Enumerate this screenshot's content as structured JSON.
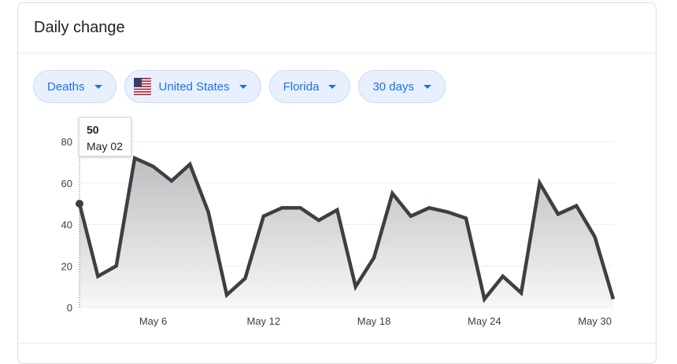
{
  "card": {
    "title": "Daily change"
  },
  "filters": [
    {
      "label": "Deaths",
      "icon": "caret-down-icon"
    },
    {
      "label": "United States",
      "icon": "us-flag-icon"
    },
    {
      "label": "Florida",
      "icon": "caret-down-icon"
    },
    {
      "label": "30 days",
      "icon": "caret-down-icon"
    }
  ],
  "tooltip": {
    "value": "50",
    "date": "May 02"
  },
  "colors": {
    "chip_bg": "#e8f0fe",
    "chip_text": "#1a73e8",
    "line": "#3c4043"
  },
  "chart_data": {
    "type": "area",
    "x": [
      "May 02",
      "May 03",
      "May 04",
      "May 05",
      "May 06",
      "May 07",
      "May 08",
      "May 09",
      "May 10",
      "May 11",
      "May 12",
      "May 13",
      "May 14",
      "May 15",
      "May 16",
      "May 17",
      "May 18",
      "May 19",
      "May 20",
      "May 21",
      "May 22",
      "May 23",
      "May 24",
      "May 25",
      "May 26",
      "May 27",
      "May 28",
      "May 29",
      "May 30",
      "May 31"
    ],
    "values": [
      50,
      15,
      20,
      72,
      68,
      61,
      69,
      46,
      6,
      14,
      44,
      48,
      48,
      42,
      47,
      10,
      24,
      55,
      44,
      48,
      46,
      43,
      4,
      15,
      7,
      60,
      45,
      49,
      34,
      4
    ],
    "x_tick_labels": [
      "May 6",
      "May 12",
      "May 18",
      "May 24",
      "May 30"
    ],
    "x_tick_index": [
      4,
      10,
      16,
      22,
      28
    ],
    "y_ticks": [
      0,
      20,
      40,
      60,
      80
    ],
    "ylim": [
      0,
      80
    ],
    "grid": true,
    "highlight_index": 0
  }
}
